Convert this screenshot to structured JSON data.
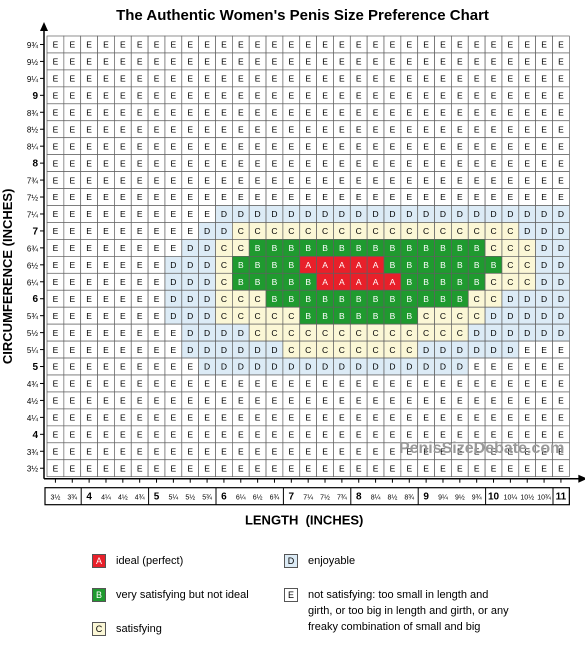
{
  "chart_data": {
    "type": "heatmap",
    "title": "The Authentic Women's Penis Size Preference Chart",
    "xlabel": "LENGTH  (INCHES)",
    "ylabel": "CIRCUMFERENCE (INCHES)",
    "x_tick_labels": [
      "3½",
      "3¾",
      "4",
      "4¼",
      "4½",
      "4¾",
      "5",
      "5¼",
      "5½",
      "5¾",
      "6",
      "6¼",
      "6½",
      "6¾",
      "7",
      "7¼",
      "7½",
      "7¾",
      "8",
      "8¼",
      "8½",
      "8¾",
      "9",
      "9¼",
      "9½",
      "9¾",
      "10",
      "10¼",
      "10½",
      "10¾",
      "11"
    ],
    "y_tick_labels_top_to_bottom": [
      "9¾",
      "9½",
      "9¼",
      "9",
      "8¾",
      "8½",
      "8¼",
      "8",
      "7¾",
      "7½",
      "7¼",
      "7",
      "6¾",
      "6½",
      "6¼",
      "6",
      "5¾",
      "5½",
      "5¼",
      "5",
      "4¾",
      "4½",
      "4¼",
      "4",
      "3¾",
      "3½"
    ],
    "bold_ticks": [
      "4",
      "5",
      "6",
      "7",
      "8",
      "9",
      "10",
      "11"
    ],
    "rows_top_to_bottom": [
      "EEEEEEEEEEEEEEEEEEEEEEEEEEEEEEE",
      "EEEEEEEEEEEEEEEEEEEEEEEEEEEEEEE",
      "EEEEEEEEEEEEEEEEEEEEEEEEEEEEEEE",
      "EEEEEEEEEEEEEEEEEEEEEEEEEEEEEEE",
      "EEEEEEEEEEEEEEEEEEEEEEEEEEEEEEE",
      "EEEEEEEEEEEEEEEEEEEEEEEEEEEEEEE",
      "EEEEEEEEEEEEEEEEEEEEEEEEEEEEEEE",
      "EEEEEEEEEEEEEEEEEEEEEEEEEEEEEEE",
      "EEEEEEEEEEEEEEEEEEEEEEEEEEEEEEE",
      "EEEEEEEEEEEEEEEEEEEEEEEEEEEEEEE",
      "EEEEEEEEEEDDDDDDDDDDDDDDDDDDDDD",
      "EEEEEEEEEDDCCCCCCCCCCCCCCCCCDDD",
      "EEEEEEEEDDCCBBBBBBBBBBBBBBCCCDD",
      "EEEEEEEDDDCBBBBAAAAABBBBBBBCCDD",
      "EEEEEEEDDDCBBBBBAAAAABBBBBCCCDD",
      "EEEEEEEDDDCCCBBBBBBBBBBBBCCDDDD",
      "EEEEEEEDDDCCCCCBBBBBBBCCCCDDDDD",
      "EEEEEEEEDDDDCCCCCCCCCCCCCDDDDDD",
      "EEEEEEEEDDDDDDCCCCCCCCDDDDDDEEE",
      "EEEEEEEEEDDDDDDDDDDDDDDDDEEEEEE",
      "EEEEEEEEEEEEEEEEEEEEEEEEEEEEEEE",
      "EEEEEEEEEEEEEEEEEEEEEEEEEEEEEEE",
      "EEEEEEEEEEEEEEEEEEEEEEEEEEEEEEE",
      "EEEEEEEEEEEEEEEEEEEEEEEEEEEEEEE",
      "EEEEEEEEEEEEEEEEEEEEEEEEEEEEEEE",
      "EEEEEEEEEEEEEEEEEEEEEEEEEEEEEEE"
    ],
    "categories": {
      "A": {
        "fill": "#e8202a",
        "text": "#ffffff",
        "label": "ideal (perfect)"
      },
      "B": {
        "fill": "#1f9a2f",
        "text": "#ffffff",
        "label": "very satisfying but not ideal"
      },
      "C": {
        "fill": "#fbf7d6",
        "text": "#000000",
        "label": "satisfying"
      },
      "D": {
        "fill": "#dcebf6",
        "text": "#000000",
        "label": "enjoyable"
      },
      "E": {
        "fill": "#ffffff",
        "text": "#000000",
        "label": "not satisfying: too small in length and\ngirth, or too big in length and girth, or any\nfreaky combination of small and big"
      }
    },
    "watermark": "PenisSizeDebate.com",
    "grid": true
  },
  "legend": [
    {
      "key": "A",
      "text": "ideal (perfect)"
    },
    {
      "key": "D",
      "text": "enjoyable"
    },
    {
      "key": "B",
      "text": "very satisfying but not ideal"
    },
    {
      "key": "E",
      "text": "not satisfying: too small in length and\ngirth, or too big in length and girth, or any\nfreaky combination of small and big"
    },
    {
      "key": "C",
      "text": "satisfying"
    }
  ]
}
